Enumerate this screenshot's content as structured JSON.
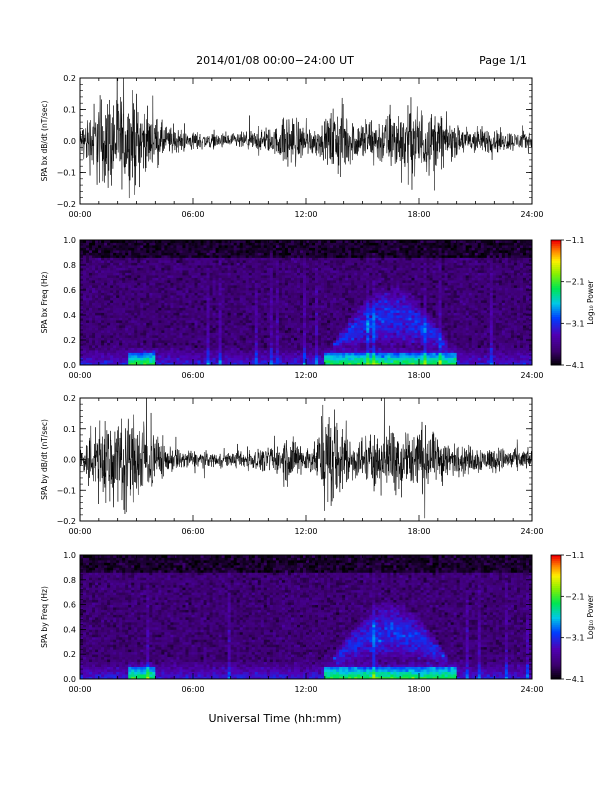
{
  "header": {
    "title": "2014/01/08  00:00−24:00 UT",
    "page": "Page 1/1"
  },
  "xlabel": "Universal Time (hh:mm)",
  "chart_data": [
    {
      "type": "line",
      "ylabel": "SPA bx dB/dt (nT/sec)",
      "xlim": [
        0,
        24
      ],
      "ylim": [
        -0.2,
        0.2
      ],
      "xticks": [
        "00:00",
        "06:00",
        "12:00",
        "18:00",
        "24:00"
      ],
      "yticks": [
        "0.2",
        "0.1",
        "0.0",
        "−0.1",
        "−0.2"
      ],
      "envelope_hours": [
        0,
        1,
        1.5,
        2,
        2.5,
        3,
        3.5,
        4,
        4.5,
        5,
        6,
        7,
        8,
        9,
        10,
        10.5,
        11,
        11.5,
        12,
        12.5,
        13,
        13.5,
        14,
        14.5,
        15,
        15.5,
        16,
        16.5,
        17,
        17.5,
        18,
        18.5,
        19,
        19.5,
        20,
        21,
        22,
        23,
        24
      ],
      "envelope_amp": [
        0.05,
        0.2,
        0.2,
        0.2,
        0.18,
        0.2,
        0.12,
        0.1,
        0.07,
        0.05,
        0.04,
        0.03,
        0.03,
        0.04,
        0.05,
        0.06,
        0.12,
        0.1,
        0.06,
        0.06,
        0.07,
        0.15,
        0.15,
        0.08,
        0.09,
        0.1,
        0.1,
        0.12,
        0.14,
        0.16,
        0.15,
        0.13,
        0.12,
        0.09,
        0.06,
        0.06,
        0.05,
        0.04,
        0.04
      ]
    },
    {
      "type": "heatmap",
      "ylabel": "SPA bx Freq (Hz)",
      "xlim": [
        0,
        24
      ],
      "ylim": [
        0,
        1.0
      ],
      "xticks": [
        "00:00",
        "06:00",
        "12:00",
        "18:00",
        "24:00"
      ],
      "yticks": [
        "1.0",
        "0.8",
        "0.6",
        "0.4",
        "0.2",
        "0.0"
      ],
      "colorbar": {
        "label": "Log₁₀ Power",
        "ticks": [
          "−1.1",
          "−2.1",
          "−3.1",
          "−4.1"
        ],
        "range": [
          -4.1,
          -1.1
        ]
      },
      "features": {
        "base_power": -3.7,
        "low_freq_enhancement_hours": [
          [
            2.5,
            4
          ],
          [
            13,
            20
          ]
        ],
        "peak_band_hz": [
          0.3,
          0.55
        ],
        "peak_band_hours": [
          13.5,
          19.5
        ]
      }
    },
    {
      "type": "line",
      "ylabel": "SPA by dB/dt (nT/sec)",
      "xlim": [
        0,
        24
      ],
      "ylim": [
        -0.2,
        0.2
      ],
      "xticks": [
        "00:00",
        "06:00",
        "12:00",
        "18:00",
        "24:00"
      ],
      "yticks": [
        "0.2",
        "0.1",
        "0.0",
        "−0.1",
        "−0.2"
      ],
      "envelope_hours": [
        0,
        1,
        1.5,
        2,
        2.5,
        3,
        3.5,
        4,
        4.5,
        5,
        6,
        7,
        8,
        9,
        10,
        10.5,
        11,
        11.5,
        12,
        12.5,
        13,
        13.5,
        14,
        14.5,
        15,
        15.5,
        16,
        16.5,
        17,
        17.5,
        18,
        18.5,
        19,
        19.5,
        20,
        21,
        22,
        23,
        24
      ],
      "envelope_amp": [
        0.05,
        0.15,
        0.2,
        0.2,
        0.2,
        0.2,
        0.14,
        0.12,
        0.07,
        0.05,
        0.04,
        0.03,
        0.03,
        0.04,
        0.05,
        0.06,
        0.12,
        0.08,
        0.06,
        0.07,
        0.2,
        0.2,
        0.13,
        0.09,
        0.09,
        0.12,
        0.12,
        0.13,
        0.15,
        0.16,
        0.15,
        0.12,
        0.1,
        0.08,
        0.06,
        0.06,
        0.05,
        0.05,
        0.04
      ]
    },
    {
      "type": "heatmap",
      "ylabel": "SPA by Freq (Hz)",
      "xlim": [
        0,
        24
      ],
      "ylim": [
        0,
        1.0
      ],
      "xticks": [
        "00:00",
        "06:00",
        "12:00",
        "18:00",
        "24:00"
      ],
      "yticks": [
        "1.0",
        "0.8",
        "0.6",
        "0.4",
        "0.2",
        "0.0"
      ],
      "colorbar": {
        "label": "Log₁₀ Power",
        "ticks": [
          "−1.1",
          "−2.1",
          "−3.1",
          "−4.1"
        ],
        "range": [
          -4.1,
          -1.1
        ]
      },
      "features": {
        "base_power": -3.7,
        "low_freq_enhancement_hours": [
          [
            2.5,
            4
          ],
          [
            13,
            20
          ]
        ],
        "peak_band_hz": [
          0.3,
          0.55
        ],
        "peak_band_hours": [
          13.5,
          19.5
        ]
      }
    }
  ]
}
